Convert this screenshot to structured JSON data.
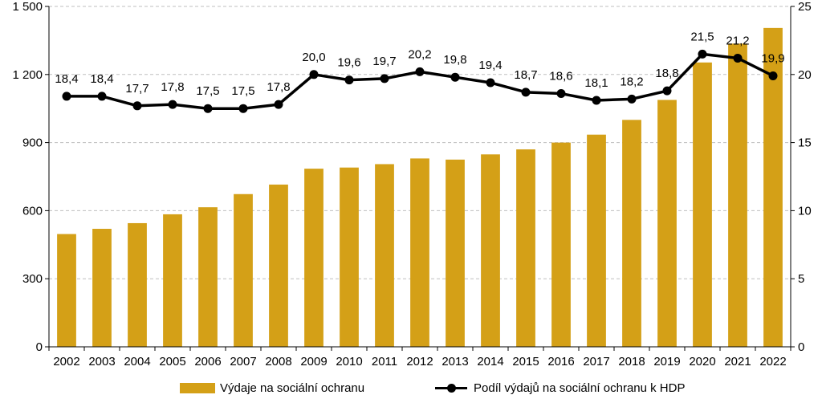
{
  "chart_data": {
    "type": "bar+line",
    "categories": [
      "2002",
      "2003",
      "2004",
      "2005",
      "2006",
      "2007",
      "2008",
      "2009",
      "2010",
      "2011",
      "2012",
      "2013",
      "2014",
      "2015",
      "2016",
      "2017",
      "2018",
      "2019",
      "2020",
      "2021",
      "2022"
    ],
    "series": [
      {
        "name": "Výdaje na sociální ochranu",
        "type": "bar",
        "axis": "left",
        "values": [
          497,
          520,
          545,
          584,
          615,
          673,
          715,
          785,
          790,
          805,
          830,
          825,
          848,
          870,
          900,
          935,
          1000,
          1088,
          1253,
          1336,
          1405
        ]
      },
      {
        "name": "Podíl výdajů na sociální ochranu k HDP",
        "type": "line",
        "axis": "right",
        "values": [
          18.4,
          18.4,
          17.7,
          17.8,
          17.5,
          17.5,
          17.8,
          20.0,
          19.6,
          19.7,
          20.2,
          19.8,
          19.4,
          18.7,
          18.6,
          18.1,
          18.2,
          18.8,
          21.5,
          21.2,
          19.9
        ],
        "labels": [
          "18,4",
          "18,4",
          "17,7",
          "17,8",
          "17,5",
          "17,5",
          "17,8",
          "20,0",
          "19,6",
          "19,7",
          "20,2",
          "19,8",
          "19,4",
          "18,7",
          "18,6",
          "18,1",
          "18,2",
          "18,8",
          "21,5",
          "21,2",
          "19,9"
        ]
      }
    ],
    "y_left": {
      "lim": [
        0,
        1500
      ],
      "ticks": [
        0,
        300,
        600,
        900,
        1200,
        1500
      ],
      "tick_labels": [
        "0",
        "300",
        "600",
        "900",
        "1 200",
        "1 500"
      ]
    },
    "y_right": {
      "lim": [
        0,
        25
      ],
      "ticks": [
        0,
        5,
        10,
        15,
        20,
        25
      ],
      "tick_labels": [
        "0",
        "5",
        "10",
        "15",
        "20",
        "25"
      ]
    },
    "grid": true,
    "legend_position": "bottom",
    "colors": {
      "bar": "#D4A017",
      "line": "#000000",
      "grid": "#BFBFBF"
    }
  }
}
